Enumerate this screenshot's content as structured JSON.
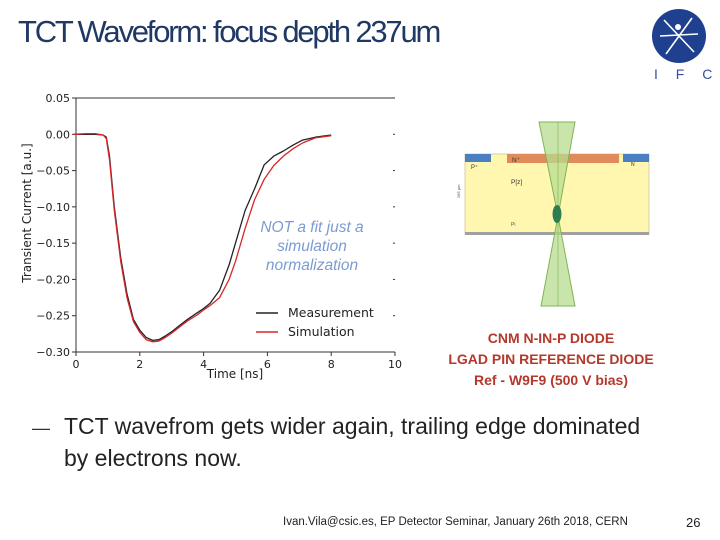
{
  "slide": {
    "title": "TCT Waveform: focus depth 237um",
    "logo_text": "I F C A",
    "bullet_dash": "—",
    "bullet_text": "TCT wavefrom gets wider again, trailing edge dominated by electrons now.",
    "footer": "Ivan.Vila@csic.es, EP Detector Seminar, January 26th 2018, CERN",
    "page_number": "26"
  },
  "diagram": {
    "label_n_plus": "N⁺",
    "label_p_plus": "P⁺",
    "label_pz": "P[z]",
    "label_pi": "Pi",
    "label_depth": "285 µm",
    "label_n_small": "N"
  },
  "caption": {
    "line1": "CNM N-IN-P DIODE",
    "line2": "LGAD PIN REFERENCE DIODE",
    "line3": "Ref - W9F9  (500 V bias)"
  },
  "chart_data": {
    "type": "line",
    "title": "",
    "xlabel": "Time [ns]",
    "ylabel": "Transient Current [a.u.]",
    "xlim": [
      0,
      10
    ],
    "ylim": [
      -0.3,
      0.05
    ],
    "xticks": [
      0,
      2,
      4,
      6,
      8,
      10
    ],
    "yticks": [
      0.05,
      0.0,
      -0.05,
      -0.1,
      -0.15,
      -0.2,
      -0.25,
      -0.3
    ],
    "ytick_labels": [
      "0.05",
      "0.00",
      "−0.05",
      "−0.10",
      "−0.15",
      "−0.20",
      "−0.25",
      "−0.30"
    ],
    "annotation": "NOT a fit just a simulation normalization",
    "annotation_lines": [
      "NOT a fit just a",
      "simulation",
      "normalization"
    ],
    "legend_position": "lower-right",
    "series": [
      {
        "name": "Measurement",
        "color": "#222222",
        "x": [
          -0.1,
          0.3,
          0.6,
          0.85,
          0.95,
          1.05,
          1.2,
          1.4,
          1.6,
          1.8,
          2.0,
          2.2,
          2.4,
          2.6,
          2.8,
          3.0,
          3.2,
          3.5,
          3.8,
          4.0,
          4.2,
          4.5,
          4.8,
          5.0,
          5.3,
          5.6,
          5.9,
          6.2,
          6.5,
          6.8,
          7.1,
          7.5,
          8.0
        ],
        "values": [
          0.0,
          0.0,
          0.0,
          -0.001,
          -0.004,
          -0.03,
          -0.1,
          -0.17,
          -0.22,
          -0.255,
          -0.27,
          -0.28,
          -0.284,
          -0.283,
          -0.278,
          -0.272,
          -0.265,
          -0.255,
          -0.246,
          -0.24,
          -0.233,
          -0.215,
          -0.18,
          -0.15,
          -0.105,
          -0.075,
          -0.042,
          -0.03,
          -0.023,
          -0.015,
          -0.008,
          -0.004,
          -0.001
        ]
      },
      {
        "name": "Simulation",
        "color": "#d62728",
        "x": [
          -0.1,
          0.3,
          0.6,
          0.85,
          0.95,
          1.05,
          1.2,
          1.4,
          1.6,
          1.8,
          2.0,
          2.2,
          2.4,
          2.6,
          2.8,
          3.0,
          3.2,
          3.5,
          3.8,
          4.0,
          4.2,
          4.5,
          4.8,
          5.0,
          5.3,
          5.6,
          5.9,
          6.2,
          6.5,
          6.8,
          7.1,
          7.5,
          8.0
        ],
        "values": [
          0.0,
          0.001,
          0.001,
          -0.001,
          -0.006,
          -0.035,
          -0.105,
          -0.175,
          -0.225,
          -0.258,
          -0.273,
          -0.283,
          -0.286,
          -0.285,
          -0.28,
          -0.274,
          -0.267,
          -0.257,
          -0.249,
          -0.242,
          -0.236,
          -0.225,
          -0.2,
          -0.175,
          -0.13,
          -0.09,
          -0.062,
          -0.043,
          -0.03,
          -0.02,
          -0.012,
          -0.005,
          -0.002
        ]
      }
    ]
  },
  "colors": {
    "title": "#1f3864",
    "caption": "#b4382b",
    "annotation": "#7b9bd1",
    "diagram_fill": "#fff7b0",
    "beam": "#b7dc8f"
  }
}
